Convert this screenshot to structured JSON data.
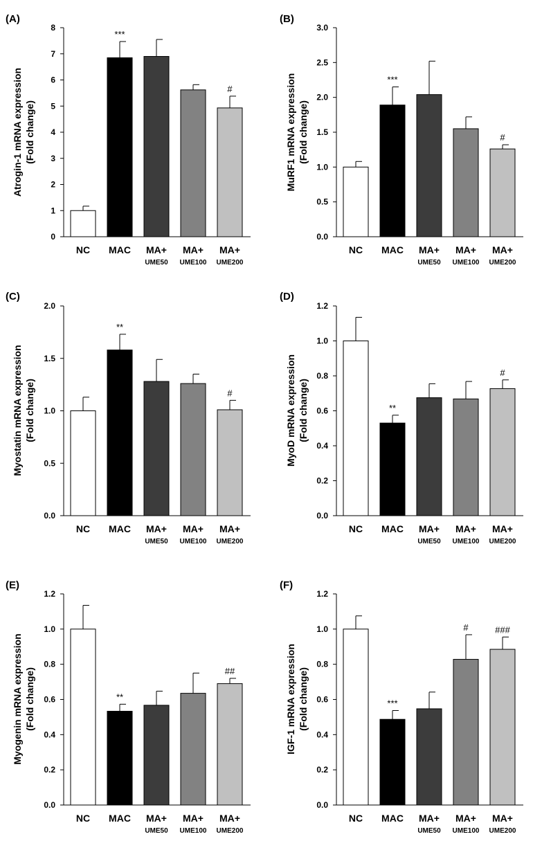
{
  "figure": {
    "title": ""
  },
  "chart_data": [
    {
      "panel": "(A)",
      "type": "bar",
      "ylabel_line1": "Atrogin-1 mRNA expression",
      "ylabel_line2": "(Fold change)",
      "categories": [
        "NC",
        "MAC",
        "MA+",
        "MA+",
        "MA+"
      ],
      "subcategories": [
        "",
        "",
        "UME50",
        "UME100",
        "UME200"
      ],
      "values": [
        1.0,
        6.85,
        6.9,
        5.62,
        4.93
      ],
      "errors": [
        0.17,
        0.62,
        0.65,
        0.2,
        0.45
      ],
      "annotations": [
        "",
        "***",
        "",
        "",
        "#"
      ],
      "ylim": [
        0,
        8
      ],
      "yticks": [
        0,
        1,
        2,
        3,
        4,
        5,
        6,
        7,
        8
      ],
      "ytick_labels": [
        "0",
        "1",
        "2",
        "3",
        "4",
        "5",
        "6",
        "7",
        "8"
      ]
    },
    {
      "panel": "(B)",
      "type": "bar",
      "ylabel_line1": "MuRF1  mRNA expression",
      "ylabel_line2": "(Fold change)",
      "categories": [
        "NC",
        "MAC",
        "MA+",
        "MA+",
        "MA+"
      ],
      "subcategories": [
        "",
        "",
        "UME50",
        "UME100",
        "UME200"
      ],
      "values": [
        1.0,
        1.89,
        2.04,
        1.55,
        1.26
      ],
      "errors": [
        0.08,
        0.26,
        0.48,
        0.17,
        0.06
      ],
      "annotations": [
        "",
        "***",
        "",
        "",
        "#"
      ],
      "ylim": [
        0,
        3.0
      ],
      "yticks": [
        0,
        0.5,
        1.0,
        1.5,
        2.0,
        2.5,
        3.0
      ],
      "ytick_labels": [
        "0.0",
        "0.5",
        "1.0",
        "1.5",
        "2.0",
        "2.5",
        "3.0"
      ]
    },
    {
      "panel": "(C)",
      "type": "bar",
      "ylabel_line1": "Myostatin mRNA expression",
      "ylabel_line2": "(Fold change)",
      "categories": [
        "NC",
        "MAC",
        "MA+",
        "MA+",
        "MA+"
      ],
      "subcategories": [
        "",
        "",
        "UME50",
        "UME100",
        "UME200"
      ],
      "values": [
        1.0,
        1.58,
        1.28,
        1.26,
        1.01
      ],
      "errors": [
        0.13,
        0.15,
        0.21,
        0.09,
        0.09
      ],
      "annotations": [
        "",
        "**",
        "",
        "",
        "#"
      ],
      "ylim": [
        0,
        2.0
      ],
      "yticks": [
        0,
        0.5,
        1.0,
        1.5,
        2.0
      ],
      "ytick_labels": [
        "0.0",
        "0.5",
        "1.0",
        "1.5",
        "2.0"
      ]
    },
    {
      "panel": "(D)",
      "type": "bar",
      "ylabel_line1": "MyoD mRNA expression",
      "ylabel_line2": "(Fold change)",
      "categories": [
        "NC",
        "MAC",
        "MA+",
        "MA+",
        "MA+"
      ],
      "subcategories": [
        "",
        "",
        "UME50",
        "UME100",
        "UME200"
      ],
      "values": [
        1.0,
        0.53,
        0.675,
        0.668,
        0.727
      ],
      "errors": [
        0.135,
        0.045,
        0.08,
        0.1,
        0.05
      ],
      "annotations": [
        "",
        "**",
        "",
        "",
        "#"
      ],
      "ylim": [
        0,
        1.2
      ],
      "yticks": [
        0,
        0.2,
        0.4,
        0.6,
        0.8,
        1.0,
        1.2
      ],
      "ytick_labels": [
        "0.0",
        "0.2",
        "0.4",
        "0.6",
        "0.8",
        "1.0",
        "1.2"
      ]
    },
    {
      "panel": "(E)",
      "type": "bar",
      "ylabel_line1": "Myogenin mRNA expression",
      "ylabel_line2": "(Fold change)",
      "categories": [
        "NC",
        "MAC",
        "MA+",
        "MA+",
        "MA+"
      ],
      "subcategories": [
        "",
        "",
        "UME50",
        "UME100",
        "UME200"
      ],
      "values": [
        1.0,
        0.533,
        0.567,
        0.635,
        0.69
      ],
      "errors": [
        0.135,
        0.04,
        0.08,
        0.115,
        0.03
      ],
      "annotations": [
        "",
        "**",
        "",
        "",
        "##"
      ],
      "ylim": [
        0,
        1.2
      ],
      "yticks": [
        0,
        0.2,
        0.4,
        0.6,
        0.8,
        1.0,
        1.2
      ],
      "ytick_labels": [
        "0.0",
        "0.2",
        "0.4",
        "0.6",
        "0.8",
        "1.0",
        "1.2"
      ]
    },
    {
      "panel": "(F)",
      "type": "bar",
      "ylabel_line1": "IGF-1 mRNA expression",
      "ylabel_line2": "(Fold change)",
      "categories": [
        "NC",
        "MAC",
        "MA+",
        "MA+",
        "MA+"
      ],
      "subcategories": [
        "",
        "",
        "UME50",
        "UME100",
        "UME200"
      ],
      "values": [
        1.0,
        0.487,
        0.547,
        0.828,
        0.885
      ],
      "errors": [
        0.075,
        0.05,
        0.095,
        0.14,
        0.07
      ],
      "annotations": [
        "",
        "***",
        "",
        "#",
        "###"
      ],
      "ylim": [
        0,
        1.2
      ],
      "yticks": [
        0,
        0.2,
        0.4,
        0.6,
        0.8,
        1.0,
        1.2
      ],
      "ytick_labels": [
        "0.0",
        "0.2",
        "0.4",
        "0.6",
        "0.8",
        "1.0",
        "1.2"
      ]
    }
  ],
  "bar_colors": [
    "#ffffff",
    "#000000",
    "#3c3c3c",
    "#828282",
    "#c0c0c0"
  ],
  "bar_edge_color": "#000000"
}
